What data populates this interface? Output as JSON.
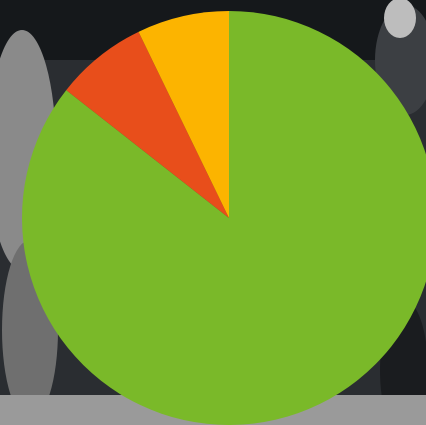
{
  "chart_data": {
    "type": "pie",
    "values": [
      85.6,
      7.2,
      7.2
    ],
    "colors": [
      "#7ab929",
      "#e84e1b",
      "#fcb400"
    ]
  }
}
